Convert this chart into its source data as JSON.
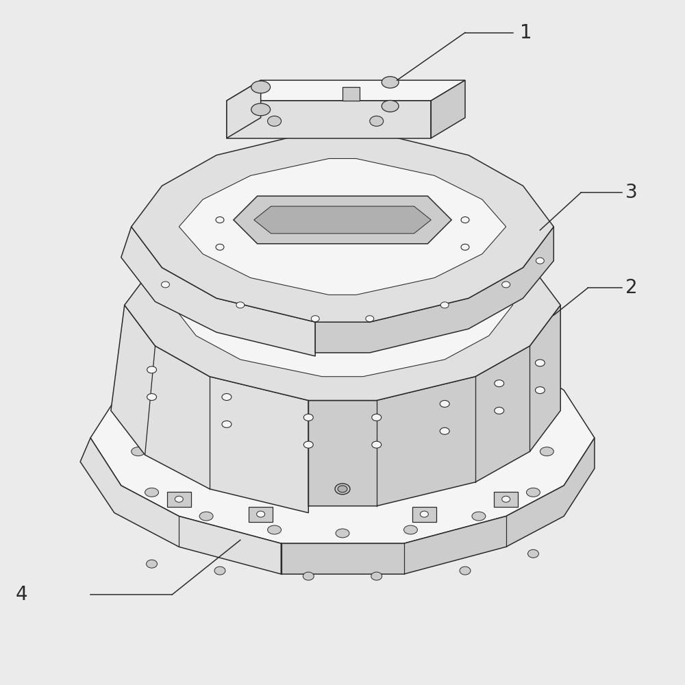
{
  "background_color": "#ebebeb",
  "line_color": "#2a2a2a",
  "fill_white": "#f5f5f5",
  "fill_light": "#e0e0e0",
  "fill_mid": "#cccccc",
  "fill_dark": "#b0b0b0",
  "fill_darker": "#999999",
  "label_fontsize": 20,
  "line_width": 1.1,
  "labels": [
    "1",
    "2",
    "3",
    "4"
  ]
}
